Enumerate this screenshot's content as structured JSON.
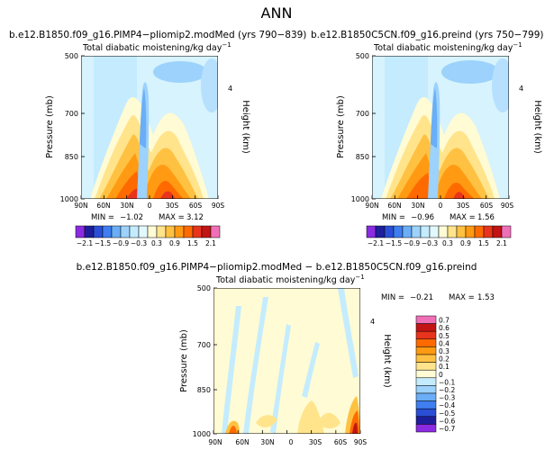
{
  "page_title": "ANN",
  "panel_units": "Total diabatic moistening/kg day",
  "units_exponent": "−1",
  "y_axis_label": "Pressure (mb)",
  "right_axis_label": "Height (km)",
  "right_axis_tick": "4",
  "chart_data": [
    {
      "type": "heatmap",
      "title": "b.e12.B1850.f09_g16.PIMP4−pliomip2.modMed (yrs 790−839)",
      "subtitle": "Total diabatic moistening/kg day−1",
      "x_ticks": [
        "90N",
        "60N",
        "30N",
        "0",
        "30S",
        "60S",
        "90S"
      ],
      "y_ticks": [
        "500",
        "700",
        "850",
        "1000"
      ],
      "ylabel": "Pressure (mb)",
      "right_label": "Height (km)",
      "right_ticks": [
        "4"
      ],
      "min_label": "MIN =",
      "min_value": "−1.02",
      "max_label": "MAX =",
      "max_value": "3.12",
      "colorbar_labels": [
        "−2.1",
        "−1.5",
        "−0.9",
        "−0.3",
        "0.3",
        "0.9",
        "1.5",
        "2.1"
      ],
      "colorbar_levels": [
        -2.1,
        -1.8,
        -1.5,
        -1.2,
        -0.9,
        -0.6,
        -0.3,
        0,
        0.3,
        0.6,
        0.9,
        1.2,
        1.5,
        1.8,
        2.1
      ]
    },
    {
      "type": "heatmap",
      "title": "b.e12.B1850C5CN.f09_g16.preind (yrs 750−799)",
      "subtitle": "Total diabatic moistening/kg day−1",
      "x_ticks": [
        "90N",
        "60N",
        "30N",
        "0",
        "30S",
        "60S",
        "90S"
      ],
      "y_ticks": [
        "500",
        "700",
        "850",
        "1000"
      ],
      "ylabel": "Pressure (mb)",
      "right_label": "Height (km)",
      "right_ticks": [
        "4"
      ],
      "min_label": "MIN =",
      "min_value": "−0.96",
      "max_label": "MAX =",
      "max_value": "1.56",
      "colorbar_labels": [
        "−2.1",
        "−1.5",
        "−0.9",
        "−0.3",
        "0.3",
        "0.9",
        "1.5",
        "2.1"
      ],
      "colorbar_levels": [
        -2.1,
        -1.8,
        -1.5,
        -1.2,
        -0.9,
        -0.6,
        -0.3,
        0,
        0.3,
        0.6,
        0.9,
        1.2,
        1.5,
        1.8,
        2.1
      ]
    },
    {
      "type": "heatmap",
      "title": "b.e12.B1850.f09_g16.PIMP4−pliomip2.modMed − b.e12.B1850C5CN.f09_g16.preind",
      "subtitle": "Total diabatic moistening/kg day−1",
      "x_ticks": [
        "90N",
        "60N",
        "30N",
        "0",
        "30S",
        "60S",
        "90S"
      ],
      "y_ticks": [
        "500",
        "700",
        "850",
        "1000"
      ],
      "ylabel": "Pressure (mb)",
      "right_label": "Height (km)",
      "right_ticks": [
        "4"
      ],
      "min_label": "MIN =",
      "min_value": "−0.21",
      "max_label": "MAX =",
      "max_value": "1.53",
      "colorbar_labels": [
        "0.7",
        "0.6",
        "0.5",
        "0.4",
        "0.3",
        "0.2",
        "0.1",
        "0",
        "−0.1",
        "−0.2",
        "−0.3",
        "−0.4",
        "−0.5",
        "−0.6",
        "−0.7"
      ]
    }
  ],
  "colors": {
    "ramp": [
      "#8a2be2",
      "#1e1e9c",
      "#2a4fd6",
      "#3f7ef0",
      "#6aaef7",
      "#9cd2fb",
      "#c4ecfe",
      "#e2f8ff",
      "#fffbd4",
      "#ffe48c",
      "#ffc142",
      "#ff9a12",
      "#ff6a00",
      "#e8341c",
      "#c21414",
      "#f070b8"
    ],
    "diff_ramp_top_to_bottom": [
      "#f070b8",
      "#c21414",
      "#e8341c",
      "#ff6a00",
      "#ff9a12",
      "#ffc142",
      "#ffe48c",
      "#fffbd4",
      "#c4ecfe",
      "#9cd2fb",
      "#6aaef7",
      "#3f7ef0",
      "#2a4fd6",
      "#1e1e9c",
      "#8a2be2"
    ]
  }
}
